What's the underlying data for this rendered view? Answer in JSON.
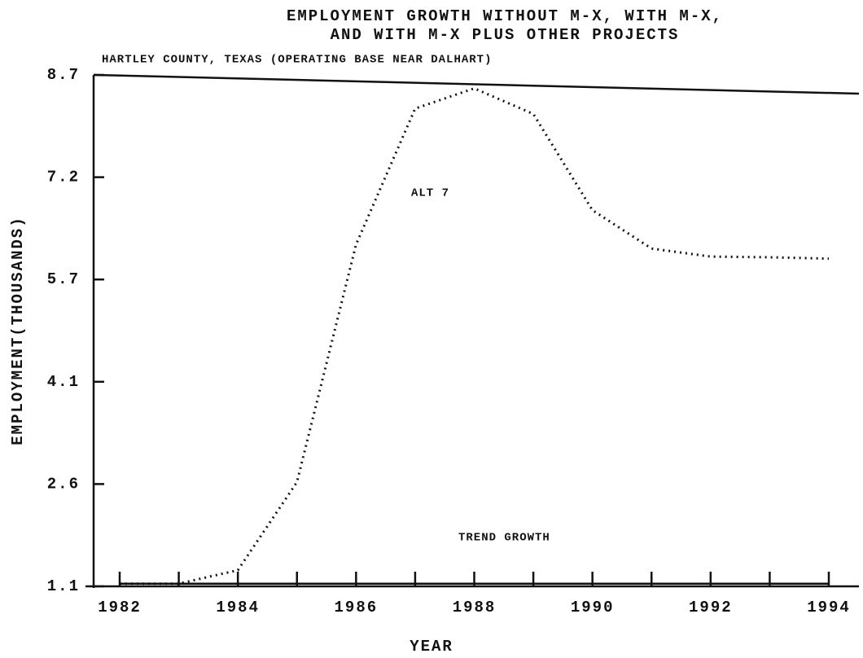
{
  "chart_data": {
    "type": "line",
    "title": [
      "EMPLOYMENT GROWTH WITHOUT M-X, WITH M-X,",
      "AND WITH M-X PLUS OTHER PROJECTS"
    ],
    "subtitle": "HARTLEY COUNTY, TEXAS (OPERATING BASE NEAR DALHART)",
    "x_label": "YEAR",
    "y_label": "EMPLOYMENT(THOUSANDS)",
    "x": [
      1982,
      1983,
      1984,
      1985,
      1986,
      1987,
      1988,
      1989,
      1990,
      1991,
      1992,
      1993,
      1994
    ],
    "series": [
      {
        "name": "ALT 7",
        "color": "#111",
        "dash": true,
        "values": [
          1.14,
          1.14,
          1.34,
          2.65,
          6.18,
          8.2,
          8.5,
          8.12,
          6.69,
          6.12,
          6.0,
          5.99,
          5.97
        ]
      },
      {
        "name": "TREND GROWTH",
        "color": "#111",
        "dash": false,
        "values": [
          1.14,
          1.14,
          1.14,
          1.14,
          1.14,
          1.14,
          1.14,
          1.14,
          1.14,
          1.14,
          1.14,
          1.14,
          1.14
        ]
      }
    ],
    "xlim": [
      1982,
      1994
    ],
    "xticks": [
      1982,
      1984,
      1986,
      1988,
      1990,
      1992,
      1994
    ],
    "xticks_minor": [
      1983,
      1985,
      1987,
      1989,
      1991,
      1993
    ],
    "ylim": [
      1.1,
      8.7
    ],
    "yticks": [
      1.1,
      {
        "value": 2.62,
        "label": "2.6"
      },
      {
        "value": 4.14,
        "label": "4.1"
      },
      {
        "value": 5.66,
        "label": "5.7"
      },
      {
        "value": 7.18,
        "label": "7.2"
      },
      8.7
    ]
  }
}
